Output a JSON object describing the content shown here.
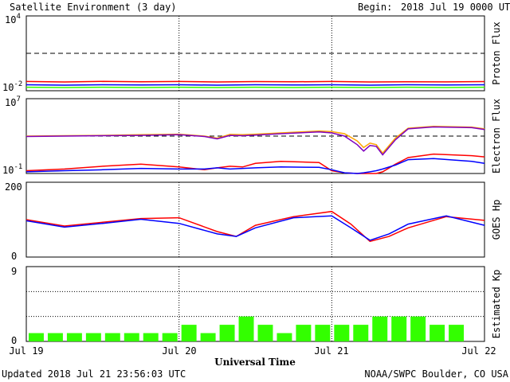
{
  "header": {
    "title": "Satellite Environment (3 day)",
    "begin_label": "Begin:",
    "begin_value": "2018 Jul 19 0000 UTC"
  },
  "footer": {
    "updated": "Updated 2018 Jul 21 23:56:03 UTC",
    "credit": "NOAA/SWPC Boulder, CO USA"
  },
  "colors": {
    "red": "#ff0000",
    "blue": "#0000ff",
    "green": "#33ff00",
    "orange": "#ffa500",
    "purple": "#7f00bf"
  },
  "chart_data": [
    {
      "type": "line",
      "ylabel": "Proton Flux",
      "y_scale": "log",
      "ylim": [
        0.01,
        10000
      ],
      "ytick_labels": [
        {
          "base": "10",
          "exp": "4"
        },
        {
          "base": "10",
          "exp": "-2"
        }
      ],
      "threshold_line": 10,
      "x": [
        0,
        6,
        12,
        18,
        24,
        30,
        36,
        42,
        48,
        54,
        60,
        66,
        72
      ],
      "series": [
        {
          "color": "red",
          "values": [
            0.055,
            0.05,
            0.056,
            0.052,
            0.055,
            0.05,
            0.054,
            0.052,
            0.055,
            0.05,
            0.053,
            0.051,
            0.054
          ]
        },
        {
          "color": "blue",
          "values": [
            0.03,
            0.028,
            0.03,
            0.029,
            0.03,
            0.028,
            0.03,
            0.029,
            0.03,
            0.028,
            0.03,
            0.029,
            0.03
          ]
        },
        {
          "color": "green",
          "values": [
            0.019,
            0.018,
            0.019,
            0.018,
            0.019,
            0.018,
            0.019,
            0.018,
            0.019,
            0.018,
            0.019,
            0.018,
            0.019
          ]
        }
      ]
    },
    {
      "type": "line",
      "ylabel": "Electron Flux",
      "y_scale": "log",
      "ylim": [
        0.1,
        10000000
      ],
      "ytick_labels": [
        {
          "base": "10",
          "exp": "7"
        },
        {
          "base": "10",
          "exp": "-1"
        }
      ],
      "threshold_line": 1000,
      "x": [
        0,
        6,
        12,
        18,
        24,
        28,
        30,
        32,
        34,
        36,
        40,
        46,
        48,
        50,
        52,
        53,
        54,
        55,
        56,
        58,
        60,
        64,
        70,
        72
      ],
      "series": [
        {
          "color": "orange",
          "values": [
            1000,
            1100,
            1200,
            1400,
            1600,
            1000,
            600,
            1500,
            1400,
            1600,
            2200,
            3500,
            3000,
            1800,
            300,
            60,
            180,
            120,
            15,
            600,
            7000,
            11000,
            9000,
            6000
          ]
        },
        {
          "color": "purple",
          "values": [
            900,
            1000,
            1100,
            1200,
            1400,
            900,
            500,
            1200,
            1100,
            1300,
            1800,
            2800,
            2200,
            1000,
            120,
            25,
            100,
            80,
            10,
            400,
            6000,
            9500,
            8000,
            5000
          ]
        },
        {
          "color": "red",
          "values": [
            0.2,
            0.3,
            0.6,
            1,
            0.5,
            0.25,
            0.4,
            0.6,
            0.5,
            1.2,
            2,
            1.5,
            0.2,
            0.12,
            0.1,
            0.1,
            0.1,
            0.1,
            0.15,
            1,
            5,
            12,
            8,
            6
          ]
        },
        {
          "color": "blue",
          "values": [
            0.15,
            0.2,
            0.25,
            0.35,
            0.3,
            0.3,
            0.4,
            0.3,
            0.35,
            0.4,
            0.5,
            0.45,
            0.25,
            0.12,
            0.1,
            0.12,
            0.15,
            0.2,
            0.3,
            0.8,
            3,
            4,
            2,
            1.2
          ]
        }
      ]
    },
    {
      "type": "line",
      "ylabel": "GOES Hp",
      "ylim": [
        0,
        200
      ],
      "ytick_labels": [
        "200",
        "0"
      ],
      "x": [
        0,
        6,
        12,
        18,
        24,
        30,
        33,
        36,
        42,
        48,
        51,
        54,
        57,
        60,
        66,
        72
      ],
      "series": [
        {
          "color": "red",
          "values": [
            100,
            83,
            93,
            103,
            105,
            68,
            55,
            85,
            108,
            122,
            88,
            42,
            55,
            78,
            108,
            98
          ]
        },
        {
          "color": "blue",
          "values": [
            97,
            80,
            90,
            101,
            90,
            62,
            55,
            78,
            105,
            110,
            78,
            45,
            62,
            88,
            110,
            85
          ]
        }
      ]
    },
    {
      "type": "bar",
      "ylabel": "Estimated Kp",
      "ylim": [
        0,
        9
      ],
      "ytick_labels": [
        "9",
        "0"
      ],
      "bar_color": "green",
      "values": [
        1,
        1,
        1,
        1,
        1,
        1,
        1,
        1,
        2,
        1,
        2,
        3,
        2,
        1,
        2,
        2,
        2,
        2,
        3,
        3,
        3,
        2,
        2,
        0
      ]
    }
  ],
  "x_axis": {
    "label": "Universal Time",
    "tick_labels": [
      "Jul 19",
      "Jul 20",
      "Jul 21",
      "Jul 22"
    ]
  }
}
